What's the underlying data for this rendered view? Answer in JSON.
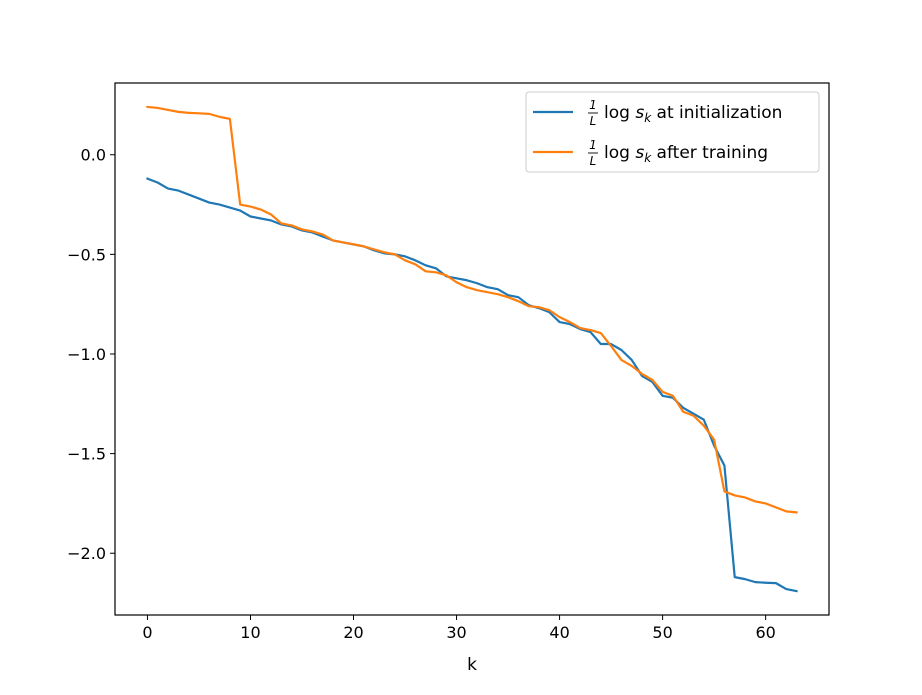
{
  "chart_data": {
    "type": "line",
    "title": "",
    "xlabel": "k",
    "ylabel": "",
    "xlim": [
      -3.15,
      66.15
    ],
    "ylim": [
      -2.31,
      0.36
    ],
    "x_ticks": [
      0,
      10,
      20,
      30,
      40,
      50,
      60
    ],
    "y_ticks": [
      0.0,
      -0.5,
      -1.0,
      -1.5,
      -2.0
    ],
    "x_tick_labels": [
      "0",
      "10",
      "20",
      "30",
      "40",
      "50",
      "60"
    ],
    "y_tick_labels": [
      "0.0",
      "−0.5",
      "−1.0",
      "−1.5",
      "−2.0"
    ],
    "grid": false,
    "legend_position": "top-right",
    "x": [
      0,
      1,
      2,
      3,
      4,
      5,
      6,
      7,
      8,
      9,
      10,
      11,
      12,
      13,
      14,
      15,
      16,
      17,
      18,
      19,
      20,
      21,
      22,
      23,
      24,
      25,
      26,
      27,
      28,
      29,
      30,
      31,
      32,
      33,
      34,
      35,
      36,
      37,
      38,
      39,
      40,
      41,
      42,
      43,
      44,
      45,
      46,
      47,
      48,
      49,
      50,
      51,
      52,
      53,
      54,
      55,
      56,
      57,
      58,
      59,
      60,
      61,
      62,
      63
    ],
    "series": [
      {
        "color": "#1f77b4",
        "legend_text": "log s",
        "legend_subscript": "k",
        "legend_suffix": " at initialization",
        "values": [
          -0.12,
          -0.14,
          -0.17,
          -0.18,
          -0.2,
          -0.22,
          -0.24,
          -0.25,
          -0.265,
          -0.28,
          -0.31,
          -0.32,
          -0.33,
          -0.35,
          -0.36,
          -0.38,
          -0.39,
          -0.41,
          -0.43,
          -0.44,
          -0.45,
          -0.46,
          -0.48,
          -0.495,
          -0.5,
          -0.51,
          -0.53,
          -0.555,
          -0.57,
          -0.61,
          -0.62,
          -0.63,
          -0.645,
          -0.665,
          -0.675,
          -0.705,
          -0.715,
          -0.755,
          -0.77,
          -0.79,
          -0.84,
          -0.85,
          -0.875,
          -0.89,
          -0.95,
          -0.95,
          -0.98,
          -1.03,
          -1.11,
          -1.14,
          -1.21,
          -1.22,
          -1.27,
          -1.3,
          -1.33,
          -1.46,
          -1.56,
          -2.12,
          -2.13,
          -2.145,
          -2.148,
          -2.15,
          -2.18,
          -2.19
        ]
      },
      {
        "color": "#ff7f0e",
        "legend_text": "log s",
        "legend_subscript": "k",
        "legend_suffix": " after training",
        "values": [
          0.24,
          0.235,
          0.225,
          0.215,
          0.21,
          0.208,
          0.205,
          0.19,
          0.18,
          -0.25,
          -0.26,
          -0.275,
          -0.3,
          -0.345,
          -0.355,
          -0.375,
          -0.385,
          -0.4,
          -0.43,
          -0.44,
          -0.45,
          -0.46,
          -0.475,
          -0.49,
          -0.5,
          -0.53,
          -0.55,
          -0.585,
          -0.59,
          -0.605,
          -0.64,
          -0.665,
          -0.68,
          -0.69,
          -0.7,
          -0.715,
          -0.735,
          -0.76,
          -0.765,
          -0.78,
          -0.815,
          -0.84,
          -0.87,
          -0.88,
          -0.895,
          -0.96,
          -1.03,
          -1.06,
          -1.1,
          -1.13,
          -1.19,
          -1.21,
          -1.29,
          -1.31,
          -1.36,
          -1.43,
          -1.69,
          -1.71,
          -1.72,
          -1.74,
          -1.75,
          -1.77,
          -1.79,
          -1.795
        ]
      }
    ],
    "legend_fraction": {
      "numerator": "1",
      "denominator": "L"
    }
  }
}
